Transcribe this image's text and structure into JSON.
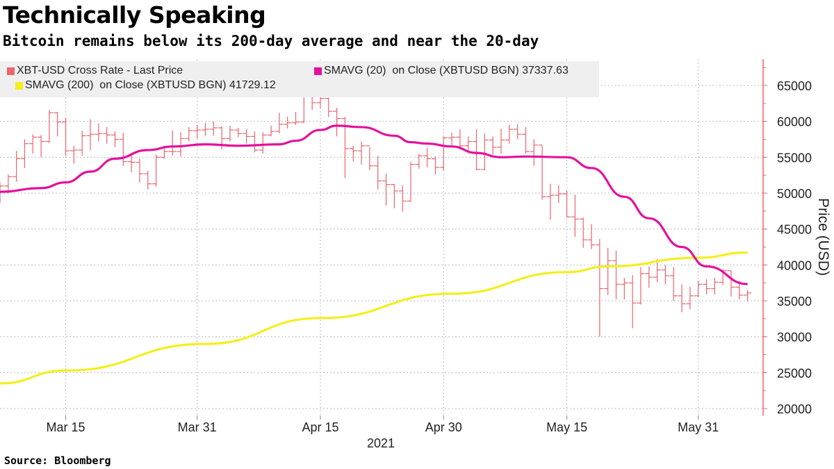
{
  "title": "Technically Speaking",
  "subtitle": "Bitcoin remains below its 200-day average and near the 20-day",
  "source": "Source: Bloomberg",
  "chart_data": {
    "type": "line",
    "ylabel": "Price (USD)",
    "xlabel": "2021",
    "ylim": [
      20000,
      65000
    ],
    "yticks": [
      "20000",
      "25000",
      "30000",
      "35000",
      "40000",
      "45000",
      "50000",
      "55000",
      "60000",
      "65000"
    ],
    "xticks": [
      {
        "date": "2021-03-15",
        "label": "Mar 15"
      },
      {
        "date": "2021-03-31",
        "label": "Mar 31"
      },
      {
        "date": "2021-04-15",
        "label": "Apr 15"
      },
      {
        "date": "2021-04-30",
        "label": "Apr 30"
      },
      {
        "date": "2021-05-15",
        "label": "May 15"
      },
      {
        "date": "2021-05-31",
        "label": "May 31"
      }
    ],
    "x_start": "2021-03-07",
    "x_end": "2021-06-07",
    "grid": true,
    "legend": [
      {
        "label": "XBT-USD Cross Rate - Last Price",
        "color": "#f0646a"
      },
      {
        "label": "SMAVG (20)  on Close (XBTUSD BGN) 37337.63",
        "color": "#e3119c"
      },
      {
        "label": "SMAVG (200)  on Close (XBTUSD BGN) 41729.12",
        "color": "#f5ee1e"
      }
    ],
    "ohlc_start": "2021-03-07",
    "closes": [
      51000,
      52300,
      54800,
      56900,
      57800,
      57200,
      61200,
      59900,
      55900,
      56000,
      58000,
      58200,
      58300,
      58100,
      57500,
      54400,
      54300,
      52700,
      51300,
      55000,
      55800,
      55800,
      57600,
      58700,
      58800,
      58900,
      59100,
      57600,
      58800,
      58300,
      57900,
      56000,
      58100,
      58600,
      59600,
      59800,
      59900,
      63600,
      62600,
      63200,
      61400,
      60400,
      56200,
      55900,
      56600,
      53800,
      51700,
      51200,
      50300,
      48900,
      54000,
      55200,
      54800,
      53600,
      57700,
      57800,
      56600,
      57200,
      53300,
      57400,
      56400,
      57400,
      58900,
      58200,
      55800,
      56700,
      49500,
      49700,
      49900,
      46700,
      46400,
      43500,
      42800,
      36700,
      40600,
      37300,
      37500,
      34700,
      38800,
      38300,
      39300,
      38500,
      35700,
      34600,
      35700,
      37300,
      36700,
      37600,
      39200,
      36900,
      35800,
      36100
    ],
    "first_open": 49200,
    "highs": [
      51500,
      52600,
      55900,
      57500,
      58200,
      58100,
      61600,
      61300,
      60500,
      56600,
      58700,
      60300,
      59700,
      59200,
      58600,
      58400,
      55600,
      54800,
      53100,
      55400,
      56600,
      58700,
      58500,
      59200,
      59500,
      59800,
      60000,
      59300,
      59400,
      59100,
      58900,
      58600,
      58500,
      59400,
      61200,
      60700,
      61300,
      64900,
      64800,
      63800,
      63300,
      61900,
      60600,
      56600,
      57200,
      56400,
      55200,
      52700,
      51300,
      51100,
      54400,
      55500,
      56300,
      55100,
      57900,
      58400,
      58900,
      57900,
      58900,
      58300,
      57900,
      59000,
      59500,
      59600,
      59200,
      57500,
      56600,
      51300,
      51100,
      50400,
      49800,
      46600,
      45700,
      43600,
      42400,
      42000,
      38200,
      38600,
      39700,
      39800,
      40800,
      40000,
      39700,
      37300,
      37000,
      37800,
      38000,
      38200,
      39400,
      39200,
      37800,
      36500
    ],
    "lows": [
      48600,
      50000,
      51600,
      53500,
      55500,
      55000,
      57000,
      57900,
      55200,
      54100,
      55200,
      56000,
      57200,
      56900,
      56400,
      53800,
      52900,
      51500,
      50500,
      50900,
      54800,
      55200,
      55100,
      57200,
      57600,
      58000,
      58000,
      56100,
      57200,
      57800,
      56900,
      55700,
      55500,
      57900,
      58300,
      59000,
      59500,
      59800,
      61600,
      61800,
      60600,
      57900,
      52100,
      54400,
      54000,
      53200,
      50500,
      48300,
      47900,
      47400,
      48800,
      53400,
      53600,
      52600,
      53200,
      56400,
      56100,
      55800,
      53200,
      53200,
      55400,
      55500,
      56900,
      57500,
      55500,
      53800,
      49100,
      46300,
      48600,
      46600,
      43900,
      42400,
      42200,
      30000,
      35800,
      35200,
      35200,
      31200,
      34500,
      36800,
      37600,
      37300,
      35000,
      33400,
      33800,
      35500,
      35900,
      35900,
      37200,
      35600,
      35200,
      34900
    ],
    "sma20": [
      {
        "date": "2021-03-07",
        "value": 50200
      },
      {
        "date": "2021-03-12",
        "value": 50700
      },
      {
        "date": "2021-03-15",
        "value": 51500
      },
      {
        "date": "2021-03-18",
        "value": 53000
      },
      {
        "date": "2021-03-21",
        "value": 54800
      },
      {
        "date": "2021-03-25",
        "value": 56000
      },
      {
        "date": "2021-03-28",
        "value": 56500
      },
      {
        "date": "2021-04-01",
        "value": 56800
      },
      {
        "date": "2021-04-05",
        "value": 56600
      },
      {
        "date": "2021-04-10",
        "value": 56800
      },
      {
        "date": "2021-04-12",
        "value": 57300
      },
      {
        "date": "2021-04-15",
        "value": 58800
      },
      {
        "date": "2021-04-17",
        "value": 59400
      },
      {
        "date": "2021-04-20",
        "value": 59200
      },
      {
        "date": "2021-04-24",
        "value": 58000
      },
      {
        "date": "2021-04-26",
        "value": 57100
      },
      {
        "date": "2021-04-28",
        "value": 56900
      },
      {
        "date": "2021-05-01",
        "value": 56500
      },
      {
        "date": "2021-05-04",
        "value": 55600
      },
      {
        "date": "2021-05-07",
        "value": 55000
      },
      {
        "date": "2021-05-10",
        "value": 55100
      },
      {
        "date": "2021-05-15",
        "value": 55000
      },
      {
        "date": "2021-05-18",
        "value": 53500
      },
      {
        "date": "2021-05-22",
        "value": 49500
      },
      {
        "date": "2021-05-25",
        "value": 46500
      },
      {
        "date": "2021-05-29",
        "value": 42500
      },
      {
        "date": "2021-06-01",
        "value": 39800
      },
      {
        "date": "2021-06-06",
        "value": 37337.63
      }
    ],
    "sma200": [
      {
        "date": "2021-03-07",
        "value": 23500
      },
      {
        "date": "2021-03-15",
        "value": 25300
      },
      {
        "date": "2021-04-01",
        "value": 29000
      },
      {
        "date": "2021-04-15",
        "value": 32600
      },
      {
        "date": "2021-05-01",
        "value": 36000
      },
      {
        "date": "2021-05-15",
        "value": 39000
      },
      {
        "date": "2021-05-20",
        "value": 39800
      },
      {
        "date": "2021-05-31",
        "value": 41000
      },
      {
        "date": "2021-06-06",
        "value": 41729.12
      }
    ]
  }
}
